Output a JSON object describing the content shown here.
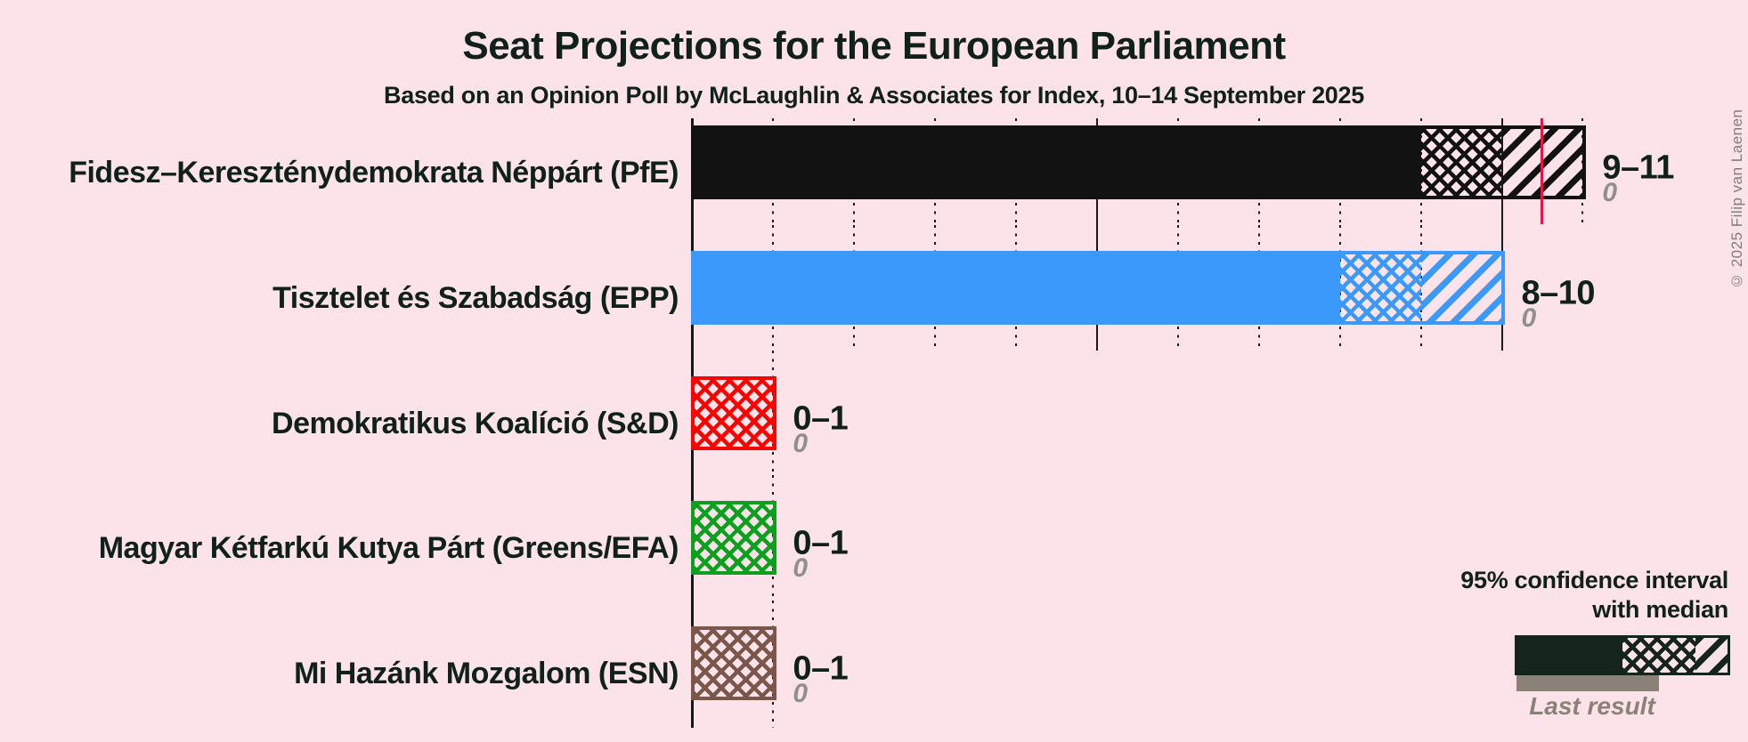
{
  "page": {
    "background_color": "#fbe3e9",
    "text_color": "#10201b",
    "copyright": "© 2025 Filip van Laenen"
  },
  "chart_data": {
    "type": "bar",
    "title": "Seat Projections for the European Parliament",
    "subtitle": "Based on an Opinion Poll by McLaughlin & Associates for Index, 10–14 September 2025",
    "unit": "seats",
    "orientation": "horizontal",
    "axis": {
      "min": 0,
      "major_gridline_interval": 5,
      "minor_gridline_interval": 1,
      "gridline_style_minor": "dotted",
      "gridline_style_major": "solid"
    },
    "majority_line": {
      "value": 10.5,
      "color": "#e0174a",
      "row": 0
    },
    "categories": [
      {
        "label": "Fidesz–Kereszténydemokrata Néppárt (PfE)",
        "color": "#121212",
        "ci_low": 9,
        "median": 10,
        "ci_high": 11,
        "range_label": "9–11",
        "last_result": 0,
        "last_result_label": "0",
        "ticks_up_to": 11
      },
      {
        "label": "Tisztelet és Szabadság (EPP)",
        "color": "#3b99fb",
        "ci_low": 8,
        "median": 9,
        "ci_high": 10,
        "range_label": "8–10",
        "last_result": 0,
        "last_result_label": "0",
        "ticks_up_to": 10
      },
      {
        "label": "Demokratikus Koalíció (S&D)",
        "color": "#f90301",
        "ci_low": 0,
        "median": 1,
        "ci_high": 1,
        "range_label": "0–1",
        "last_result": 0,
        "last_result_label": "0",
        "ticks_up_to": 1
      },
      {
        "label": "Magyar Kétfarkú Kutya Párt (Greens/EFA)",
        "color": "#0da01e",
        "ci_low": 0,
        "median": 1,
        "ci_high": 1,
        "range_label": "0–1",
        "last_result": 0,
        "last_result_label": "0",
        "ticks_up_to": 1
      },
      {
        "label": "Mi Hazánk Mozgalom (ESN)",
        "color": "#7b564a",
        "ci_low": 0,
        "median": 1,
        "ci_high": 1,
        "range_label": "0–1",
        "last_result": 0,
        "last_result_label": "0",
        "ticks_up_to": 1
      }
    ],
    "legend": {
      "ci_line1": "95% confidence interval",
      "ci_line2": "with median",
      "ci_sample_color": "#15241d",
      "last_result_label": "Last result",
      "last_result_color": "#8b8178"
    }
  }
}
